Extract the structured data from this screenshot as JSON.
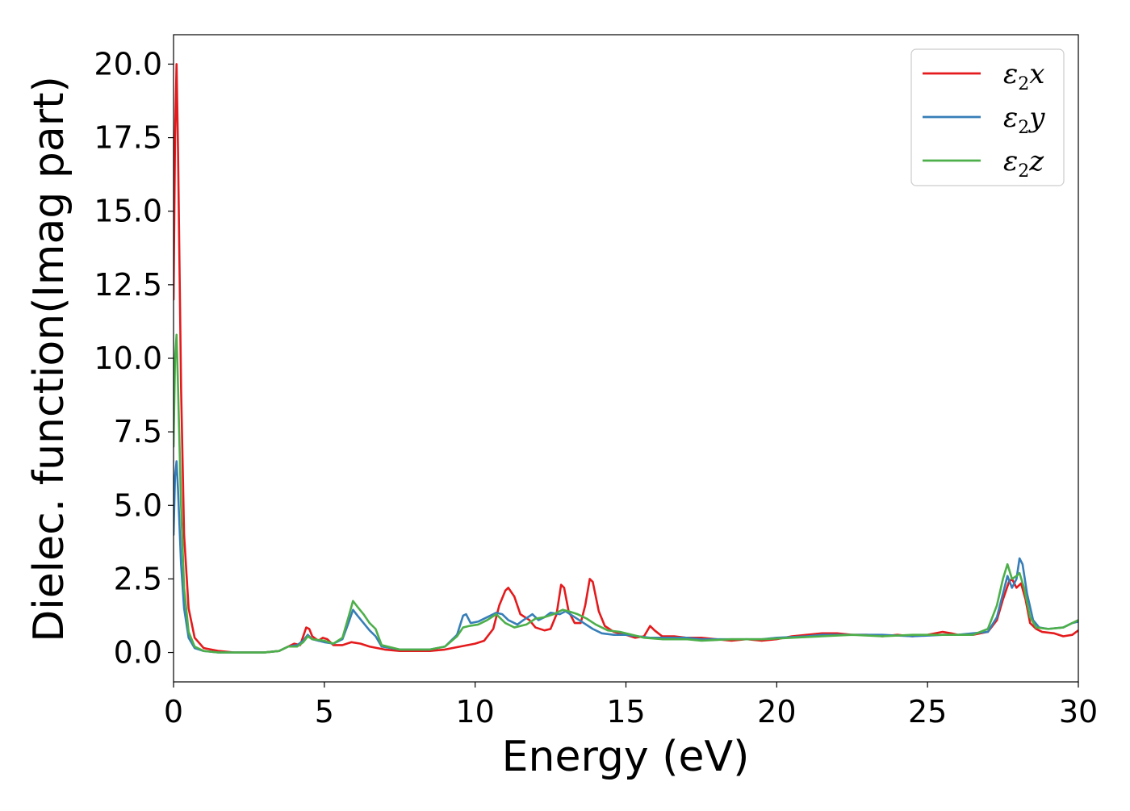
{
  "chart_data": {
    "type": "line",
    "xlabel": "Energy (eV)",
    "ylabel": "Dielec. function(Imag part)",
    "xlim": [
      0,
      30
    ],
    "ylim": [
      -1.0,
      21.0
    ],
    "xticks": [
      0,
      5,
      10,
      15,
      20,
      25,
      30
    ],
    "xtick_labels": [
      "0",
      "5",
      "10",
      "15",
      "20",
      "25",
      "30"
    ],
    "yticks": [
      0.0,
      2.5,
      5.0,
      7.5,
      10.0,
      12.5,
      15.0,
      17.5,
      20.0
    ],
    "ytick_labels": [
      "0.0",
      "2.5",
      "5.0",
      "7.5",
      "10.0",
      "12.5",
      "15.0",
      "17.5",
      "20.0"
    ],
    "grid": false,
    "legend_position": "top-right",
    "series": [
      {
        "name": "ε2x",
        "label_base": "ε",
        "label_sub": "2",
        "label_tail": "x",
        "color": "#e41a1c",
        "points": [
          [
            0.0,
            12.0
          ],
          [
            0.05,
            17.5
          ],
          [
            0.1,
            20.0
          ],
          [
            0.15,
            17.0
          ],
          [
            0.25,
            9.0
          ],
          [
            0.35,
            4.0
          ],
          [
            0.5,
            1.5
          ],
          [
            0.7,
            0.5
          ],
          [
            1.0,
            0.15
          ],
          [
            1.5,
            0.05
          ],
          [
            2.0,
            0.0
          ],
          [
            3.0,
            0.0
          ],
          [
            3.5,
            0.05
          ],
          [
            3.8,
            0.2
          ],
          [
            4.0,
            0.3
          ],
          [
            4.2,
            0.25
          ],
          [
            4.4,
            0.85
          ],
          [
            4.5,
            0.8
          ],
          [
            4.6,
            0.55
          ],
          [
            4.8,
            0.4
          ],
          [
            4.95,
            0.5
          ],
          [
            5.1,
            0.45
          ],
          [
            5.3,
            0.25
          ],
          [
            5.6,
            0.25
          ],
          [
            5.9,
            0.35
          ],
          [
            6.2,
            0.3
          ],
          [
            6.5,
            0.2
          ],
          [
            7.0,
            0.1
          ],
          [
            7.5,
            0.05
          ],
          [
            8.0,
            0.05
          ],
          [
            8.5,
            0.05
          ],
          [
            9.0,
            0.1
          ],
          [
            9.5,
            0.2
          ],
          [
            10.0,
            0.3
          ],
          [
            10.3,
            0.4
          ],
          [
            10.6,
            0.8
          ],
          [
            10.8,
            1.6
          ],
          [
            11.0,
            2.1
          ],
          [
            11.1,
            2.2
          ],
          [
            11.3,
            1.9
          ],
          [
            11.5,
            1.3
          ],
          [
            11.8,
            1.1
          ],
          [
            12.0,
            0.85
          ],
          [
            12.3,
            0.75
          ],
          [
            12.5,
            0.8
          ],
          [
            12.7,
            1.3
          ],
          [
            12.85,
            2.3
          ],
          [
            12.95,
            2.2
          ],
          [
            13.1,
            1.4
          ],
          [
            13.3,
            1.0
          ],
          [
            13.5,
            1.0
          ],
          [
            13.65,
            1.6
          ],
          [
            13.8,
            2.5
          ],
          [
            13.9,
            2.4
          ],
          [
            14.1,
            1.4
          ],
          [
            14.3,
            0.9
          ],
          [
            14.6,
            0.7
          ],
          [
            15.0,
            0.6
          ],
          [
            15.3,
            0.5
          ],
          [
            15.6,
            0.55
          ],
          [
            15.8,
            0.9
          ],
          [
            15.95,
            0.75
          ],
          [
            16.2,
            0.55
          ],
          [
            16.6,
            0.55
          ],
          [
            17.0,
            0.5
          ],
          [
            17.5,
            0.5
          ],
          [
            18.0,
            0.45
          ],
          [
            18.5,
            0.4
          ],
          [
            19.0,
            0.45
          ],
          [
            19.5,
            0.4
          ],
          [
            20.0,
            0.45
          ],
          [
            20.5,
            0.55
          ],
          [
            21.0,
            0.6
          ],
          [
            21.5,
            0.65
          ],
          [
            22.0,
            0.65
          ],
          [
            22.5,
            0.6
          ],
          [
            23.0,
            0.6
          ],
          [
            23.5,
            0.55
          ],
          [
            24.0,
            0.6
          ],
          [
            24.5,
            0.55
          ],
          [
            25.0,
            0.6
          ],
          [
            25.5,
            0.7
          ],
          [
            25.8,
            0.65
          ],
          [
            26.0,
            0.6
          ],
          [
            26.5,
            0.6
          ],
          [
            27.0,
            0.7
          ],
          [
            27.3,
            1.1
          ],
          [
            27.5,
            1.8
          ],
          [
            27.7,
            2.4
          ],
          [
            27.8,
            2.5
          ],
          [
            27.95,
            2.2
          ],
          [
            28.1,
            2.35
          ],
          [
            28.25,
            1.8
          ],
          [
            28.4,
            1.0
          ],
          [
            28.6,
            0.8
          ],
          [
            28.8,
            0.7
          ],
          [
            29.2,
            0.65
          ],
          [
            29.5,
            0.55
          ],
          [
            29.8,
            0.6
          ],
          [
            30.0,
            0.75
          ]
        ]
      },
      {
        "name": "ε2y",
        "label_base": "ε",
        "label_sub": "2",
        "label_tail": "y",
        "color": "#377eb8",
        "points": [
          [
            0.0,
            4.0
          ],
          [
            0.05,
            6.0
          ],
          [
            0.1,
            6.5
          ],
          [
            0.15,
            5.5
          ],
          [
            0.25,
            3.0
          ],
          [
            0.35,
            1.5
          ],
          [
            0.5,
            0.5
          ],
          [
            0.7,
            0.15
          ],
          [
            1.0,
            0.05
          ],
          [
            1.5,
            0.0
          ],
          [
            3.0,
            0.0
          ],
          [
            3.5,
            0.05
          ],
          [
            3.8,
            0.2
          ],
          [
            4.1,
            0.25
          ],
          [
            4.3,
            0.4
          ],
          [
            4.45,
            0.6
          ],
          [
            4.6,
            0.45
          ],
          [
            5.0,
            0.35
          ],
          [
            5.3,
            0.3
          ],
          [
            5.6,
            0.45
          ],
          [
            5.8,
            1.0
          ],
          [
            5.95,
            1.45
          ],
          [
            6.1,
            1.25
          ],
          [
            6.3,
            1.0
          ],
          [
            6.5,
            0.75
          ],
          [
            6.7,
            0.55
          ],
          [
            6.9,
            0.2
          ],
          [
            7.5,
            0.1
          ],
          [
            8.5,
            0.1
          ],
          [
            9.0,
            0.2
          ],
          [
            9.4,
            0.6
          ],
          [
            9.6,
            1.25
          ],
          [
            9.7,
            1.3
          ],
          [
            9.85,
            1.0
          ],
          [
            10.1,
            1.05
          ],
          [
            10.4,
            1.2
          ],
          [
            10.7,
            1.35
          ],
          [
            10.9,
            1.3
          ],
          [
            11.1,
            1.1
          ],
          [
            11.4,
            0.95
          ],
          [
            11.6,
            1.1
          ],
          [
            11.9,
            1.3
          ],
          [
            12.1,
            1.1
          ],
          [
            12.3,
            1.2
          ],
          [
            12.5,
            1.35
          ],
          [
            12.8,
            1.3
          ],
          [
            13.0,
            1.4
          ],
          [
            13.3,
            1.2
          ],
          [
            13.6,
            1.0
          ],
          [
            13.9,
            0.8
          ],
          [
            14.2,
            0.65
          ],
          [
            14.6,
            0.6
          ],
          [
            15.0,
            0.6
          ],
          [
            15.4,
            0.55
          ],
          [
            15.8,
            0.5
          ],
          [
            16.5,
            0.5
          ],
          [
            17.0,
            0.5
          ],
          [
            17.5,
            0.45
          ],
          [
            18.5,
            0.45
          ],
          [
            19.5,
            0.45
          ],
          [
            20.0,
            0.5
          ],
          [
            21.0,
            0.55
          ],
          [
            21.5,
            0.6
          ],
          [
            22.5,
            0.6
          ],
          [
            23.5,
            0.6
          ],
          [
            24.5,
            0.55
          ],
          [
            25.5,
            0.6
          ],
          [
            26.0,
            0.6
          ],
          [
            26.5,
            0.65
          ],
          [
            27.0,
            0.7
          ],
          [
            27.3,
            1.2
          ],
          [
            27.5,
            2.0
          ],
          [
            27.65,
            2.6
          ],
          [
            27.8,
            2.2
          ],
          [
            27.95,
            2.5
          ],
          [
            28.05,
            3.2
          ],
          [
            28.15,
            3.0
          ],
          [
            28.3,
            2.0
          ],
          [
            28.5,
            1.1
          ],
          [
            28.7,
            0.85
          ],
          [
            29.0,
            0.8
          ],
          [
            29.5,
            0.85
          ],
          [
            29.8,
            1.0
          ],
          [
            30.0,
            1.05
          ]
        ]
      },
      {
        "name": "ε2z",
        "label_base": "ε",
        "label_sub": "2",
        "label_tail": "z",
        "color": "#4daf4a",
        "points": [
          [
            0.0,
            7.0
          ],
          [
            0.05,
            10.0
          ],
          [
            0.1,
            10.8
          ],
          [
            0.15,
            9.0
          ],
          [
            0.25,
            5.0
          ],
          [
            0.35,
            2.2
          ],
          [
            0.5,
            0.7
          ],
          [
            0.7,
            0.2
          ],
          [
            1.0,
            0.05
          ],
          [
            1.5,
            0.0
          ],
          [
            3.0,
            0.0
          ],
          [
            3.5,
            0.05
          ],
          [
            3.8,
            0.2
          ],
          [
            4.1,
            0.2
          ],
          [
            4.3,
            0.35
          ],
          [
            4.45,
            0.55
          ],
          [
            4.6,
            0.45
          ],
          [
            5.0,
            0.4
          ],
          [
            5.3,
            0.3
          ],
          [
            5.6,
            0.5
          ],
          [
            5.8,
            1.2
          ],
          [
            5.95,
            1.75
          ],
          [
            6.1,
            1.55
          ],
          [
            6.3,
            1.3
          ],
          [
            6.5,
            1.0
          ],
          [
            6.7,
            0.8
          ],
          [
            6.9,
            0.25
          ],
          [
            7.5,
            0.1
          ],
          [
            8.5,
            0.1
          ],
          [
            9.0,
            0.2
          ],
          [
            9.4,
            0.55
          ],
          [
            9.6,
            0.85
          ],
          [
            9.8,
            0.9
          ],
          [
            10.1,
            0.95
          ],
          [
            10.4,
            1.1
          ],
          [
            10.7,
            1.3
          ],
          [
            11.0,
            1.0
          ],
          [
            11.3,
            0.85
          ],
          [
            11.7,
            0.95
          ],
          [
            12.0,
            1.15
          ],
          [
            12.3,
            1.2
          ],
          [
            12.6,
            1.3
          ],
          [
            12.9,
            1.45
          ],
          [
            13.1,
            1.4
          ],
          [
            13.4,
            1.3
          ],
          [
            13.7,
            1.15
          ],
          [
            14.0,
            0.95
          ],
          [
            14.4,
            0.75
          ],
          [
            14.8,
            0.7
          ],
          [
            15.2,
            0.6
          ],
          [
            15.6,
            0.5
          ],
          [
            16.2,
            0.45
          ],
          [
            17.0,
            0.45
          ],
          [
            17.5,
            0.4
          ],
          [
            18.5,
            0.45
          ],
          [
            19.5,
            0.45
          ],
          [
            20.5,
            0.5
          ],
          [
            21.5,
            0.55
          ],
          [
            22.5,
            0.6
          ],
          [
            23.5,
            0.55
          ],
          [
            24.5,
            0.6
          ],
          [
            25.5,
            0.6
          ],
          [
            26.0,
            0.6
          ],
          [
            26.5,
            0.6
          ],
          [
            27.0,
            0.8
          ],
          [
            27.3,
            1.6
          ],
          [
            27.5,
            2.5
          ],
          [
            27.65,
            3.0
          ],
          [
            27.8,
            2.5
          ],
          [
            27.95,
            2.6
          ],
          [
            28.05,
            2.7
          ],
          [
            28.2,
            2.2
          ],
          [
            28.4,
            1.2
          ],
          [
            28.6,
            0.85
          ],
          [
            29.0,
            0.8
          ],
          [
            29.5,
            0.85
          ],
          [
            29.8,
            1.0
          ],
          [
            30.0,
            1.1
          ]
        ]
      }
    ]
  }
}
